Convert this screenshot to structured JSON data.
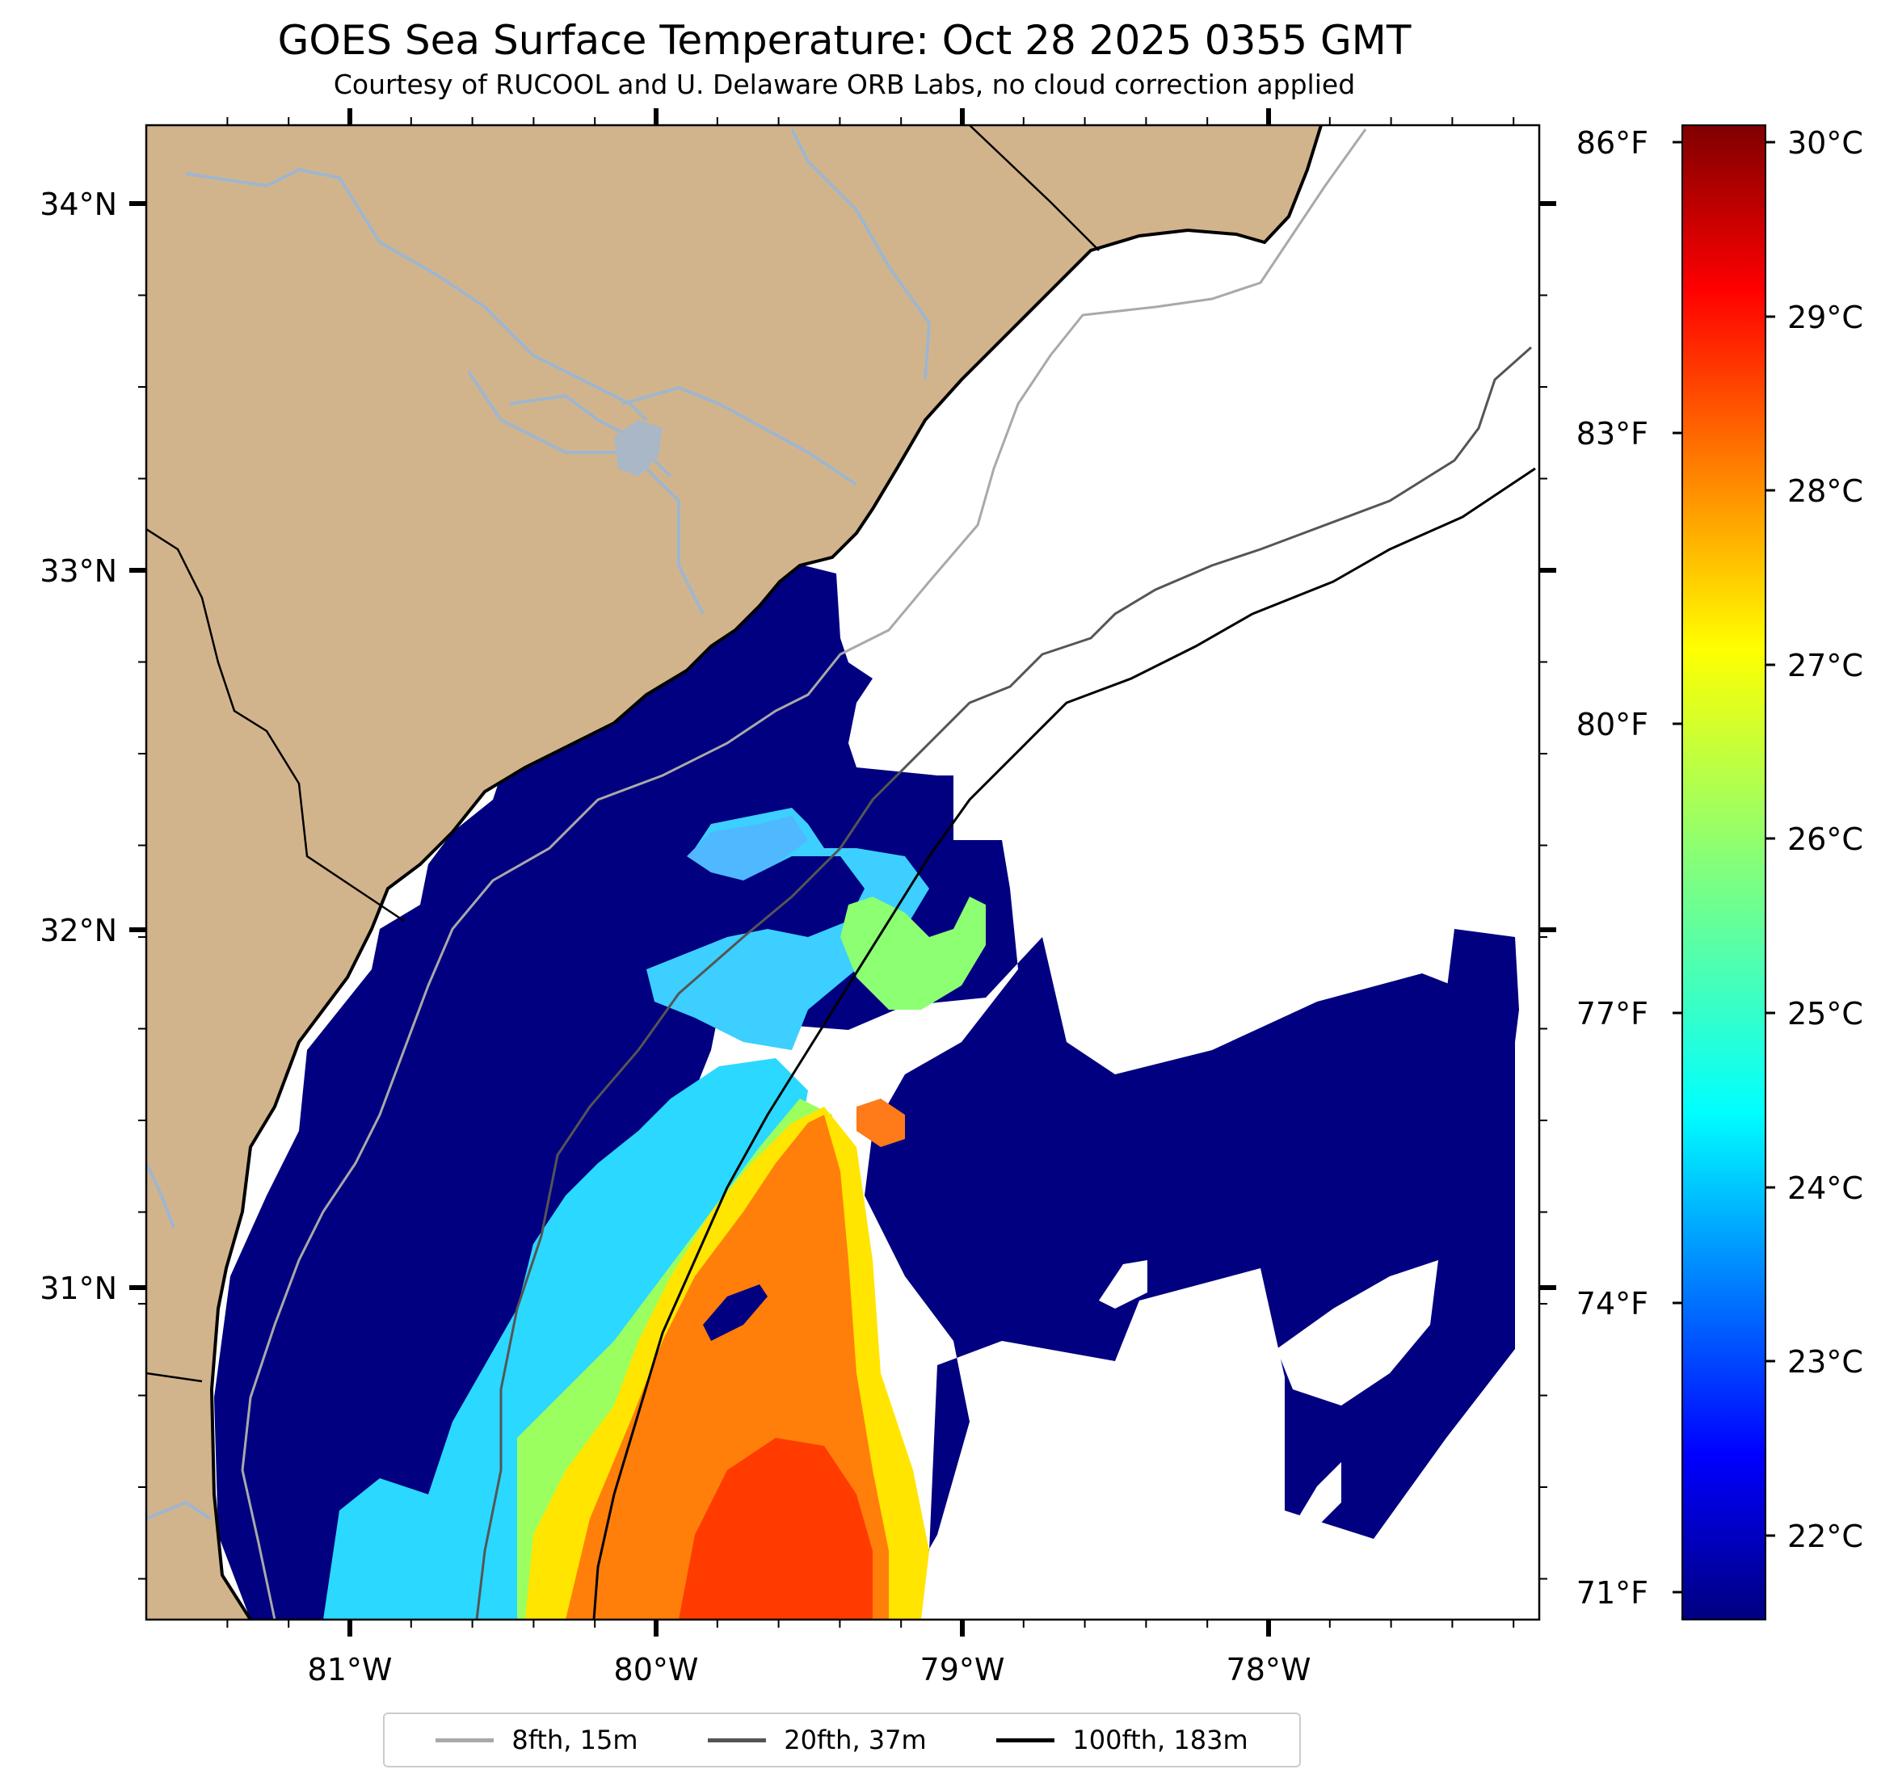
{
  "map": {
    "title": "GOES Sea Surface Temperature: Oct 28 2025 0355 GMT",
    "subtitle": "Courtesy of RUCOOL and U. Delaware ORB Labs, no cloud correction applied",
    "lat_labels": [
      "34°N",
      "33°N",
      "32°N",
      "31°N"
    ],
    "lon_labels": [
      "81°W",
      "80°W",
      "79°W",
      "78°W"
    ],
    "colors": {
      "land": "#d2b48c",
      "cold_water": "#000080",
      "river": "#9fb6cd"
    }
  },
  "colorbar": {
    "fahrenheit_labels": [
      "86°F",
      "83°F",
      "80°F",
      "77°F",
      "74°F",
      "71°F"
    ],
    "celsius_labels": [
      "30°C",
      "29°C",
      "28°C",
      "27°C",
      "26°C",
      "25°C",
      "24°C",
      "23°C",
      "22°C"
    ],
    "colormap": "jet",
    "celsius_range": [
      21.5,
      30.1
    ]
  },
  "legend": {
    "items": [
      {
        "label": "8fth, 15m",
        "color": "#a9a9a9"
      },
      {
        "label": "20fth, 37m",
        "color": "#555555"
      },
      {
        "label": "100fth, 183m",
        "color": "#000000"
      }
    ]
  }
}
